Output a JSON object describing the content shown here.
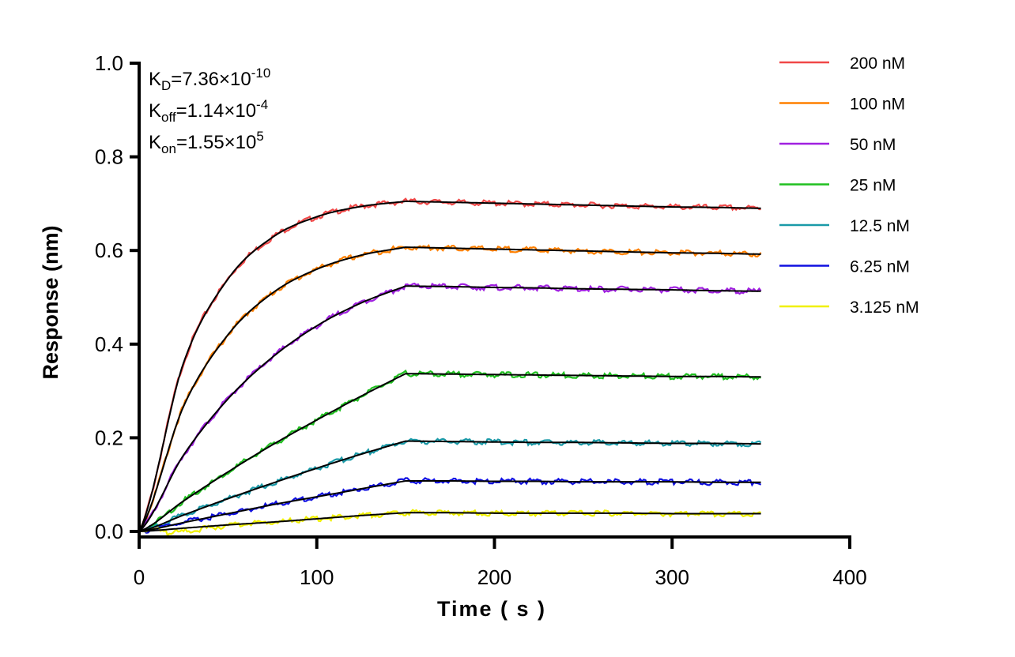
{
  "chart_data": {
    "type": "line",
    "title": "",
    "xlabel": "Time ( s )",
    "ylabel": "Response (nm)",
    "xlim": [
      0,
      400
    ],
    "ylim": [
      0,
      1.0
    ],
    "xticks": [
      "0",
      "100",
      "200",
      "300",
      "400"
    ],
    "yticks": [
      "0.0",
      "0.2",
      "0.4",
      "0.6",
      "0.8",
      "1.0"
    ],
    "grid": false,
    "legend_position": "top-right",
    "fit_color": "#000000",
    "annotations": [
      {
        "main": "K",
        "sub": "D",
        "text": "=7.36×10",
        "sup": "-10"
      },
      {
        "main": "K",
        "sub": "off",
        "text": "=1.14×10",
        "sup": "-4"
      },
      {
        "main": "K",
        "sub": "on",
        "text": "=1.55×10",
        "sup": "5"
      }
    ],
    "x": [
      0,
      25,
      50,
      75,
      100,
      125,
      150,
      175,
      200,
      225,
      250,
      275,
      300,
      325,
      350
    ],
    "series": [
      {
        "name": "200 nM",
        "color": "#f04848",
        "values": [
          0,
          0.36,
          0.539,
          0.628,
          0.672,
          0.694,
          0.705,
          0.703,
          0.701,
          0.699,
          0.697,
          0.695,
          0.693,
          0.692,
          0.69
        ]
      },
      {
        "name": "100 nM",
        "color": "#ff8000",
        "values": [
          0,
          0.267,
          0.42,
          0.509,
          0.56,
          0.59,
          0.607,
          0.605,
          0.603,
          0.601,
          0.599,
          0.597,
          0.595,
          0.594,
          0.592
        ]
      },
      {
        "name": "50 nM",
        "color": "#a020e0",
        "values": [
          0,
          0.163,
          0.283,
          0.372,
          0.439,
          0.488,
          0.524,
          0.523,
          0.521,
          0.52,
          0.518,
          0.517,
          0.516,
          0.514,
          0.513
        ]
      },
      {
        "name": "25 nM",
        "color": "#20c020",
        "values": [
          0,
          0.065,
          0.127,
          0.185,
          0.238,
          0.289,
          0.337,
          0.336,
          0.335,
          0.334,
          0.333,
          0.332,
          0.331,
          0.331,
          0.33
        ]
      },
      {
        "name": "12.5 nM",
        "color": "#1a9aa8",
        "values": [
          0,
          0.035,
          0.07,
          0.103,
          0.135,
          0.165,
          0.193,
          0.192,
          0.191,
          0.19,
          0.19,
          0.189,
          0.188,
          0.188,
          0.187
        ]
      },
      {
        "name": "6.25 nM",
        "color": "#1010e0",
        "values": [
          0,
          0.019,
          0.038,
          0.057,
          0.074,
          0.091,
          0.108,
          0.108,
          0.107,
          0.107,
          0.106,
          0.106,
          0.106,
          0.105,
          0.105
        ]
      },
      {
        "name": "3.125 nM",
        "color": "#f0f000",
        "values": [
          0,
          0.007,
          0.014,
          0.02,
          0.027,
          0.034,
          0.04,
          0.04,
          0.039,
          0.039,
          0.039,
          0.039,
          0.038,
          0.038,
          0.038
        ]
      }
    ]
  }
}
